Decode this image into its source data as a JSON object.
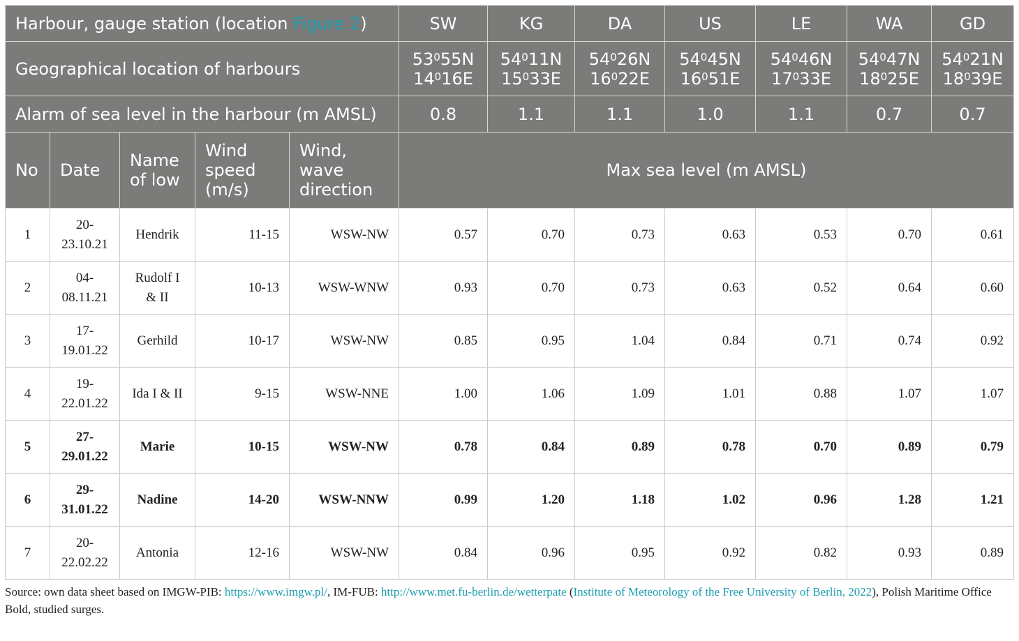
{
  "header": {
    "station_label_prefix": "Harbour, gauge station (location ",
    "station_label_link": "Figure 2",
    "station_label_suffix": ")",
    "stations": [
      "SW",
      "KG",
      "DA",
      "US",
      "LE",
      "WA",
      "GD"
    ],
    "location_label": "Geographical location of harbours",
    "locations": [
      {
        "lat_a": "53",
        "lat_b": "55N",
        "lon_a": "14",
        "lon_b": "16E"
      },
      {
        "lat_a": "54",
        "lat_b": "11N",
        "lon_a": "15",
        "lon_b": "33E"
      },
      {
        "lat_a": "54",
        "lat_b": "26N",
        "lon_a": "16",
        "lon_b": "22E"
      },
      {
        "lat_a": "54",
        "lat_b": "45N",
        "lon_a": "16",
        "lon_b": "51E"
      },
      {
        "lat_a": "54",
        "lat_b": "46N",
        "lon_a": "17",
        "lon_b": "33E"
      },
      {
        "lat_a": "54",
        "lat_b": "47N",
        "lon_a": "18",
        "lon_b": "25E"
      },
      {
        "lat_a": "54",
        "lat_b": "21N",
        "lon_a": "18",
        "lon_b": "39E"
      }
    ],
    "degree_mark": "0",
    "alarm_label": "Alarm of sea level in the harbour (m AMSL)",
    "alarms": [
      "0.8",
      "1.1",
      "1.1",
      "1.0",
      "1.1",
      "0.7",
      "0.7"
    ],
    "col_no": "No",
    "col_date": "Date",
    "col_name": "Name of low",
    "col_speed": "Wind speed (m/s)",
    "col_dir": "Wind, wave direction",
    "col_max": "Max sea level (m AMSL)"
  },
  "rows": [
    {
      "no": "1",
      "date": "20-23.10.21",
      "name": "Hendrik",
      "speed": "11-15",
      "dir": "WSW-NW",
      "levels": [
        "0.57",
        "0.70",
        "0.73",
        "0.63",
        "0.53",
        "0.70",
        "0.61"
      ],
      "bold": false
    },
    {
      "no": "2",
      "date": "04-08.11.21",
      "name": "Rudolf I & II",
      "speed": "10-13",
      "dir": "WSW-WNW",
      "levels": [
        "0.93",
        "0.70",
        "0.73",
        "0.63",
        "0.52",
        "0.64",
        "0.60"
      ],
      "bold": false
    },
    {
      "no": "3",
      "date": "17-19.01.22",
      "name": "Gerhild",
      "speed": "10-17",
      "dir": "WSW-NW",
      "levels": [
        "0.85",
        "0.95",
        "1.04",
        "0.84",
        "0.71",
        "0.74",
        "0.92"
      ],
      "bold": false
    },
    {
      "no": "4",
      "date": "19-22.01.22",
      "name": "Ida I & II",
      "speed": "9-15",
      "dir": "WSW-NNE",
      "levels": [
        "1.00",
        "1.06",
        "1.09",
        "1.01",
        "0.88",
        "1.07",
        "1.07"
      ],
      "bold": false
    },
    {
      "no": "5",
      "date": "27-29.01.22",
      "name": "Marie",
      "speed": "10-15",
      "dir": "WSW-NW",
      "levels": [
        "0.78",
        "0.84",
        "0.89",
        "0.78",
        "0.70",
        "0.89",
        "0.79"
      ],
      "bold": true
    },
    {
      "no": "6",
      "date": "29-31.01.22",
      "name": "Nadine",
      "speed": "14-20",
      "dir": "WSW-NNW",
      "levels": [
        "0.99",
        "1.20",
        "1.18",
        "1.02",
        "0.96",
        "1.28",
        "1.21"
      ],
      "bold": true
    },
    {
      "no": "7",
      "date": "20-22.02.22",
      "name": "Antonia",
      "speed": "12-16",
      "dir": "WSW-NW",
      "levels": [
        "0.84",
        "0.96",
        "0.95",
        "0.92",
        "0.82",
        "0.93",
        "0.89"
      ],
      "bold": false
    }
  ],
  "footer": {
    "source_prefix": "Source: own data sheet based on IMGW-PIB: ",
    "link1": "https://www.imgw.pl/",
    "mid1": ", IM-FUB: ",
    "link2": "http://www.met.fu-berlin.de/wetterpate",
    "mid2": " (",
    "link3": "Institute of Meteorology of the Free University of Berlin, 2022",
    "suffix": "), Polish Maritime Office",
    "note": "Bold, studied surges."
  },
  "colors": {
    "header_bg": "#7b7b79",
    "link": "#1a9eb0"
  }
}
